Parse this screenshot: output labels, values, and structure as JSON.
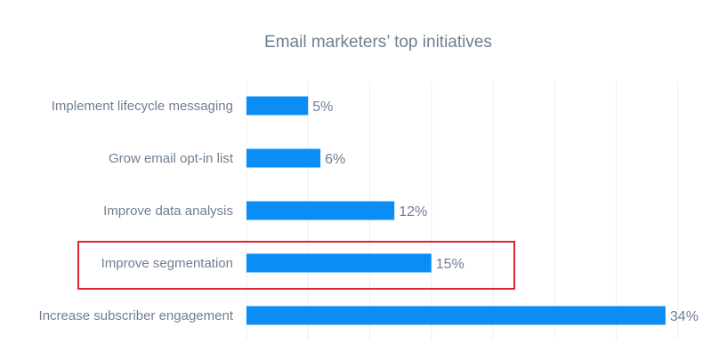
{
  "chart_data": {
    "type": "bar",
    "orientation": "horizontal",
    "title": "Email marketers’ top initiatives",
    "xlabel": "",
    "ylabel": "",
    "categories": [
      "Implement lifecycle messaging",
      "Grow email opt-in list",
      "Improve data analysis",
      "Improve segmentation",
      "Increase subscriber engagement"
    ],
    "values": [
      5,
      6,
      12,
      15,
      34
    ],
    "value_labels": [
      "5%",
      "6%",
      "12%",
      "15%",
      "34%"
    ],
    "xlim": [
      0,
      35
    ],
    "grid": true,
    "highlighted_category": "Improve segmentation",
    "colors": {
      "bar": "#0a8df5",
      "grid": "#eceff3",
      "text": "#6f7f92",
      "highlight": "#e0242b"
    }
  }
}
